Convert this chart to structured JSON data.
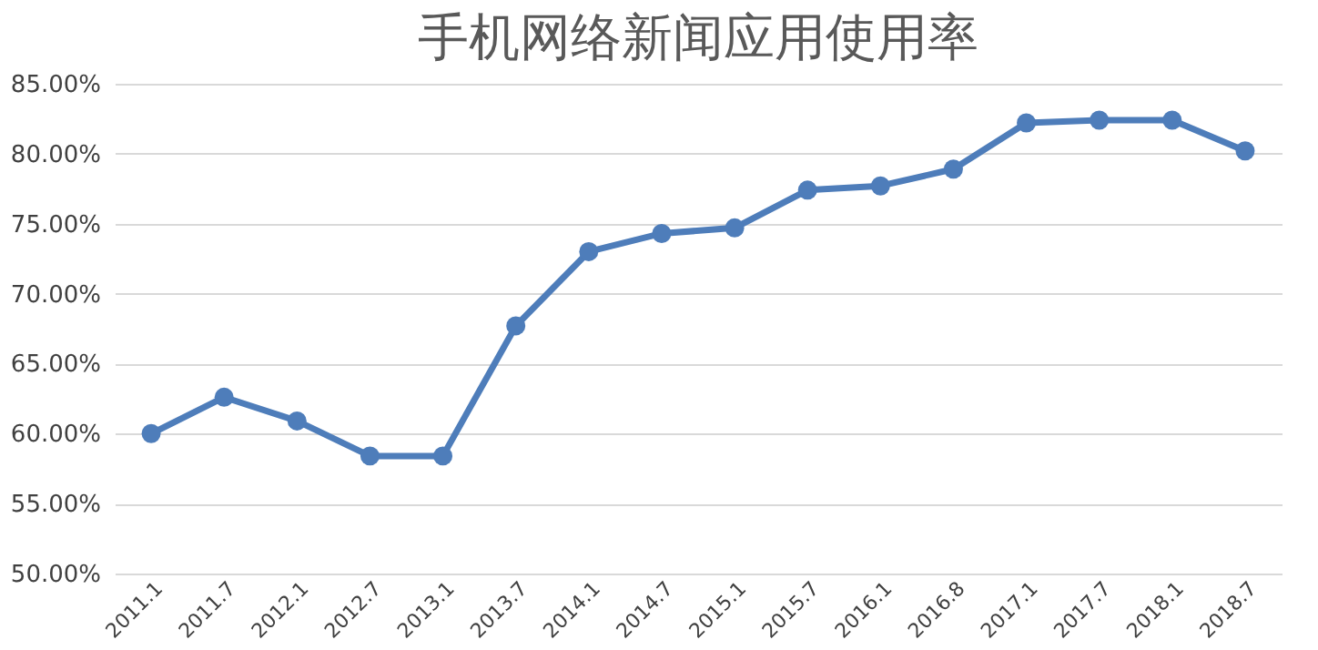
{
  "chart_data": {
    "type": "line",
    "title": "手机网络新闻应用使用率",
    "categories": [
      "2011.1",
      "2011.7",
      "2012.1",
      "2012.7",
      "2013.1",
      "2013.7",
      "2014.1",
      "2014.7",
      "2015.1",
      "2015.7",
      "2016.1",
      "2016.8",
      "2017.1",
      "2017.7",
      "2018.1",
      "2018.7"
    ],
    "series": [
      {
        "color": "#4e7dba",
        "values": [
          60.0,
          62.6,
          60.9,
          58.4,
          58.4,
          67.7,
          73.0,
          74.3,
          74.7,
          77.4,
          77.7,
          78.9,
          82.2,
          82.4,
          82.4,
          80.2
        ]
      }
    ],
    "ylim": [
      50,
      85
    ],
    "yticks": [
      {
        "value": 50,
        "label": "50.00%"
      },
      {
        "value": 55,
        "label": "55.00%"
      },
      {
        "value": 60,
        "label": "60.00%"
      },
      {
        "value": 65,
        "label": "65.00%"
      },
      {
        "value": 70,
        "label": "70.00%"
      },
      {
        "value": 75,
        "label": "75.00%"
      },
      {
        "value": 80,
        "label": "80.00%"
      },
      {
        "value": 85,
        "label": "85.00%"
      }
    ],
    "grid": "y",
    "marker": "circle",
    "line_style": "solid",
    "legend": false
  }
}
